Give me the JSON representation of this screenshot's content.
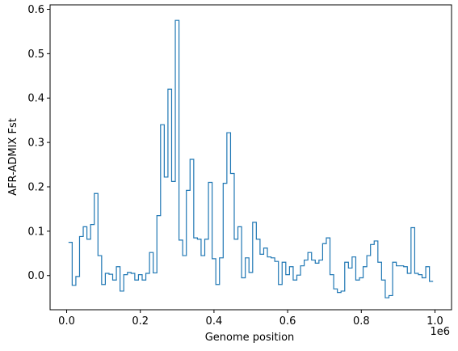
{
  "chart_data": {
    "type": "line",
    "title": "",
    "xlabel": "Genome position",
    "ylabel": "AFR-ADMIX Fst",
    "x_offset_label": "1e6",
    "xlim": [
      -45000,
      1045000
    ],
    "ylim": [
      -0.077,
      0.61
    ],
    "x_ticks": [
      0,
      200000,
      400000,
      600000,
      800000,
      1000000
    ],
    "x_tick_labels": [
      "0.0",
      "0.2",
      "0.4",
      "0.6",
      "0.8",
      "1.0"
    ],
    "y_ticks": [
      0.0,
      0.1,
      0.2,
      0.3,
      0.4,
      0.5,
      0.6
    ],
    "y_tick_labels": [
      "0.0",
      "0.1",
      "0.2",
      "0.3",
      "0.4",
      "0.5",
      "0.6"
    ],
    "grid": false,
    "step": "post",
    "color": "#1f77b4",
    "x": [
      5000,
      15000,
      25000,
      35000,
      45000,
      55000,
      65000,
      75000,
      85000,
      95000,
      105000,
      115000,
      125000,
      135000,
      145000,
      155000,
      165000,
      175000,
      185000,
      195000,
      205000,
      215000,
      225000,
      235000,
      245000,
      255000,
      265000,
      275000,
      285000,
      295000,
      305000,
      315000,
      325000,
      335000,
      345000,
      355000,
      365000,
      375000,
      385000,
      395000,
      405000,
      415000,
      425000,
      435000,
      445000,
      455000,
      465000,
      475000,
      485000,
      495000,
      505000,
      515000,
      525000,
      535000,
      545000,
      555000,
      565000,
      575000,
      585000,
      595000,
      605000,
      615000,
      625000,
      635000,
      645000,
      655000,
      665000,
      675000,
      685000,
      695000,
      705000,
      715000,
      725000,
      735000,
      745000,
      755000,
      765000,
      775000,
      785000,
      795000,
      805000,
      815000,
      825000,
      835000,
      845000,
      855000,
      865000,
      875000,
      885000,
      895000,
      905000,
      915000,
      925000,
      935000,
      945000,
      955000,
      965000,
      975000,
      985000,
      995000
    ],
    "values": [
      0.075,
      -0.022,
      -0.002,
      0.088,
      0.11,
      0.082,
      0.115,
      0.185,
      0.045,
      -0.02,
      0.005,
      0.003,
      -0.01,
      0.02,
      -0.035,
      0.002,
      0.007,
      0.005,
      -0.01,
      0.002,
      -0.01,
      0.005,
      0.052,
      0.006,
      0.135,
      0.34,
      0.222,
      0.42,
      0.212,
      0.575,
      0.08,
      0.045,
      0.192,
      0.262,
      0.085,
      0.082,
      0.045,
      0.082,
      0.21,
      0.038,
      -0.02,
      0.04,
      0.208,
      0.322,
      0.23,
      0.082,
      0.11,
      -0.005,
      0.04,
      0.007,
      0.12,
      0.082,
      0.048,
      0.062,
      0.042,
      0.04,
      0.032,
      -0.02,
      0.03,
      0.002,
      0.02,
      -0.01,
      0.001,
      0.022,
      0.035,
      0.052,
      0.035,
      0.028,
      0.035,
      0.072,
      0.085,
      0.002,
      -0.03,
      -0.038,
      -0.035,
      0.03,
      0.017,
      0.042,
      -0.01,
      -0.005,
      0.02,
      0.045,
      0.07,
      0.078,
      0.03,
      -0.01,
      -0.05,
      -0.045,
      0.03,
      0.022,
      0.022,
      0.02,
      0.005,
      0.108,
      0.005,
      0.002,
      -0.005,
      0.02,
      -0.013,
      -0.013
    ]
  }
}
